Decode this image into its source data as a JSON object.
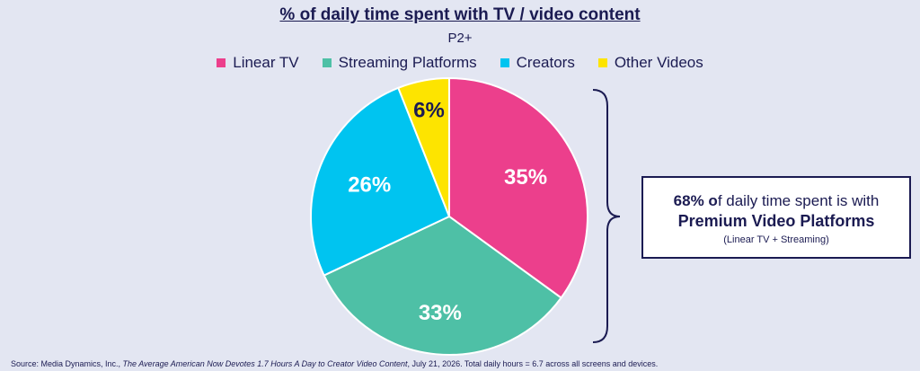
{
  "chart_data": {
    "type": "pie",
    "title": "% of daily time spent with TV / video content",
    "subtitle": "P2+",
    "legend_position": "top",
    "slices": [
      {
        "name": "Linear TV",
        "value": 35,
        "label": "35%",
        "color": "#ec3f8c"
      },
      {
        "name": "Streaming Platforms",
        "value": 33,
        "label": "33%",
        "color": "#4ec0a6"
      },
      {
        "name": "Creators",
        "value": 26,
        "label": "26%",
        "color": "#00c4f0"
      },
      {
        "name": "Other Videos",
        "value": 6,
        "label": "6%",
        "color": "#fde400"
      }
    ]
  },
  "callout": {
    "line1_bold": "68% o",
    "line1_rest": "f daily time spent is with",
    "line2": "Premium Video Platforms",
    "line3": "(Linear TV + Streaming)"
  },
  "source": {
    "prefix": "Source: Media Dynamics, Inc., ",
    "title": "The Average American Now Devotes 1.7 Hours A Day to Creator Video Content",
    "suffix": ", July 21, 2026. Total daily hours = 6.7 across all screens and devices."
  }
}
